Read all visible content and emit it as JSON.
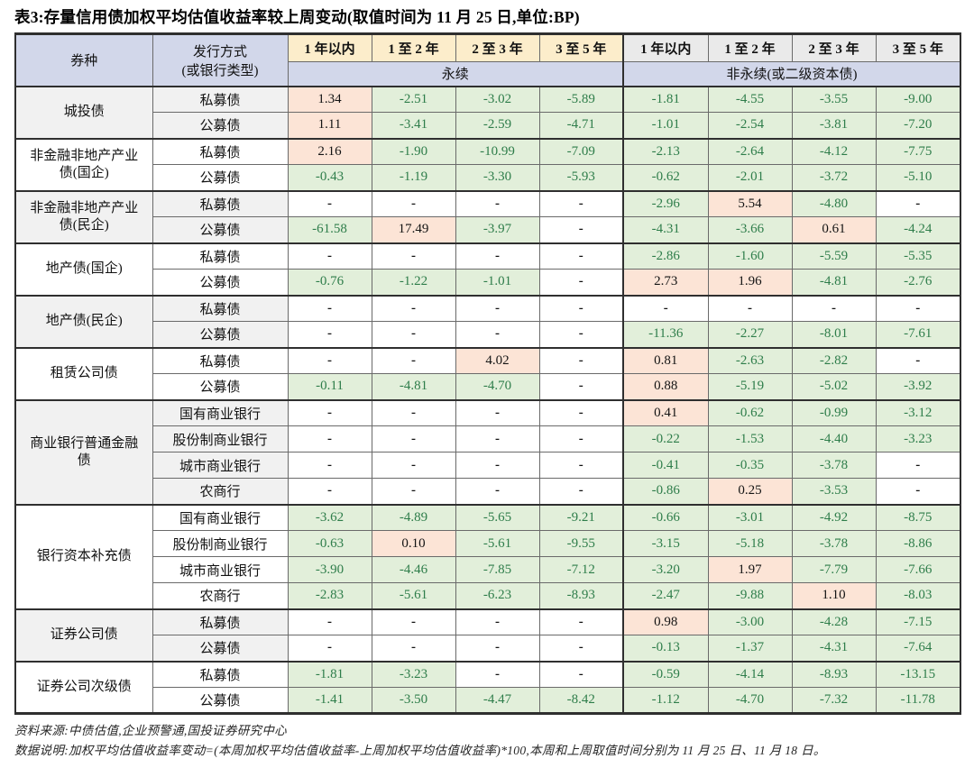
{
  "title": "表3:存量信用债加权平均估值收益率较上周变动(取值时间为 11 月 25 日,单位:BP)",
  "table": {
    "col1_header": "券种",
    "col2_header_line1": "发行方式",
    "col2_header_line2": "(或银行类型)",
    "maturity_headers_perpetual": [
      "1 年以内",
      "1 至 2 年",
      "2 至 3 年",
      "3 至 5 年"
    ],
    "maturity_headers_non_perpetual": [
      "1 年以内",
      "1 至 2 年",
      "2 至 3 年",
      "3 至 5 年"
    ],
    "band_left": "永续",
    "band_right": "非永续(或二级资本债)",
    "groups": [
      {
        "name": "城投债",
        "shaded": true,
        "rows": [
          {
            "label": "私募债",
            "values": [
              "1.34",
              "-2.51",
              "-3.02",
              "-5.89",
              "-1.81",
              "-4.55",
              "-3.55",
              "-9.00"
            ]
          },
          {
            "label": "公募债",
            "values": [
              "1.11",
              "-3.41",
              "-2.59",
              "-4.71",
              "-1.01",
              "-2.54",
              "-3.81",
              "-7.20"
            ]
          }
        ]
      },
      {
        "name": "非金融非地产产业债(国企)",
        "shaded": false,
        "rows": [
          {
            "label": "私募债",
            "values": [
              "2.16",
              "-1.90",
              "-10.99",
              "-7.09",
              "-2.13",
              "-2.64",
              "-4.12",
              "-7.75"
            ]
          },
          {
            "label": "公募债",
            "values": [
              "-0.43",
              "-1.19",
              "-3.30",
              "-5.93",
              "-0.62",
              "-2.01",
              "-3.72",
              "-5.10"
            ]
          }
        ]
      },
      {
        "name": "非金融非地产产业债(民企)",
        "shaded": true,
        "rows": [
          {
            "label": "私募债",
            "values": [
              "-",
              "-",
              "-",
              "-",
              "-2.96",
              "5.54",
              "-4.80",
              "-"
            ]
          },
          {
            "label": "公募债",
            "values": [
              "-61.58",
              "17.49",
              "-3.97",
              "-",
              "-4.31",
              "-3.66",
              "0.61",
              "-4.24"
            ]
          }
        ]
      },
      {
        "name": "地产债(国企)",
        "shaded": false,
        "rows": [
          {
            "label": "私募债",
            "values": [
              "-",
              "-",
              "-",
              "-",
              "-2.86",
              "-1.60",
              "-5.59",
              "-5.35"
            ]
          },
          {
            "label": "公募债",
            "values": [
              "-0.76",
              "-1.22",
              "-1.01",
              "-",
              "2.73",
              "1.96",
              "-4.81",
              "-2.76"
            ]
          }
        ]
      },
      {
        "name": "地产债(民企)",
        "shaded": true,
        "rows": [
          {
            "label": "私募债",
            "values": [
              "-",
              "-",
              "-",
              "-",
              "-",
              "-",
              "-",
              "-"
            ]
          },
          {
            "label": "公募债",
            "values": [
              "-",
              "-",
              "-",
              "-",
              "-11.36",
              "-2.27",
              "-8.01",
              "-7.61"
            ]
          }
        ]
      },
      {
        "name": "租赁公司债",
        "shaded": false,
        "rows": [
          {
            "label": "私募债",
            "values": [
              "-",
              "-",
              "4.02",
              "-",
              "0.81",
              "-2.63",
              "-2.82",
              "-"
            ]
          },
          {
            "label": "公募债",
            "values": [
              "-0.11",
              "-4.81",
              "-4.70",
              "-",
              "0.88",
              "-5.19",
              "-5.02",
              "-3.92"
            ]
          }
        ]
      },
      {
        "name": "商业银行普通金融债",
        "shaded": true,
        "rows": [
          {
            "label": "国有商业银行",
            "values": [
              "-",
              "-",
              "-",
              "-",
              "0.41",
              "-0.62",
              "-0.99",
              "-3.12"
            ]
          },
          {
            "label": "股份制商业银行",
            "values": [
              "-",
              "-",
              "-",
              "-",
              "-0.22",
              "-1.53",
              "-4.40",
              "-3.23"
            ]
          },
          {
            "label": "城市商业银行",
            "values": [
              "-",
              "-",
              "-",
              "-",
              "-0.41",
              "-0.35",
              "-3.78",
              "-"
            ]
          },
          {
            "label": "农商行",
            "values": [
              "-",
              "-",
              "-",
              "-",
              "-0.86",
              "0.25",
              "-3.53",
              "-"
            ]
          }
        ]
      },
      {
        "name": "银行资本补充债",
        "shaded": false,
        "rows": [
          {
            "label": "国有商业银行",
            "values": [
              "-3.62",
              "-4.89",
              "-5.65",
              "-9.21",
              "-0.66",
              "-3.01",
              "-4.92",
              "-8.75"
            ]
          },
          {
            "label": "股份制商业银行",
            "values": [
              "-0.63",
              "0.10",
              "-5.61",
              "-9.55",
              "-3.15",
              "-5.18",
              "-3.78",
              "-8.86"
            ]
          },
          {
            "label": "城市商业银行",
            "values": [
              "-3.90",
              "-4.46",
              "-7.85",
              "-7.12",
              "-3.20",
              "1.97",
              "-7.79",
              "-7.66"
            ]
          },
          {
            "label": "农商行",
            "values": [
              "-2.83",
              "-5.61",
              "-6.23",
              "-8.93",
              "-2.47",
              "-9.88",
              "1.10",
              "-8.03"
            ]
          }
        ]
      },
      {
        "name": "证券公司债",
        "shaded": true,
        "rows": [
          {
            "label": "私募债",
            "values": [
              "-",
              "-",
              "-",
              "-",
              "0.98",
              "-3.00",
              "-4.28",
              "-7.15"
            ]
          },
          {
            "label": "公募债",
            "values": [
              "-",
              "-",
              "-",
              "-",
              "-0.13",
              "-1.37",
              "-4.31",
              "-7.64"
            ]
          }
        ]
      },
      {
        "name": "证券公司次级债",
        "shaded": false,
        "rows": [
          {
            "label": "私募债",
            "values": [
              "-1.81",
              "-3.23",
              "-",
              "-",
              "-0.59",
              "-4.14",
              "-8.93",
              "-13.15"
            ]
          },
          {
            "label": "公募债",
            "values": [
              "-1.41",
              "-3.50",
              "-4.47",
              "-8.42",
              "-1.12",
              "-4.70",
              "-7.32",
              "-11.78"
            ]
          }
        ]
      }
    ]
  },
  "footnotes": {
    "source": "资料来源:中债估值,企业预警通,国投证券研究中心",
    "note": "数据说明:加权平均估值收益率变动=(本周加权平均估值收益率-上周加权平均估值收益率)*100,本周和上周取值时间分别为 11 月 25 日、11 月 18 日。"
  },
  "colors": {
    "positive_cell": "#FCE4D6",
    "negative_cell": "#E2EFDA",
    "negative_text": "#2E7D4A",
    "perpetual_header": "#FCEDCB",
    "non_perpetual_header": "#EAEAEA",
    "band_header": "#D2D7EA",
    "shaded_group": "#F1F1F1"
  }
}
